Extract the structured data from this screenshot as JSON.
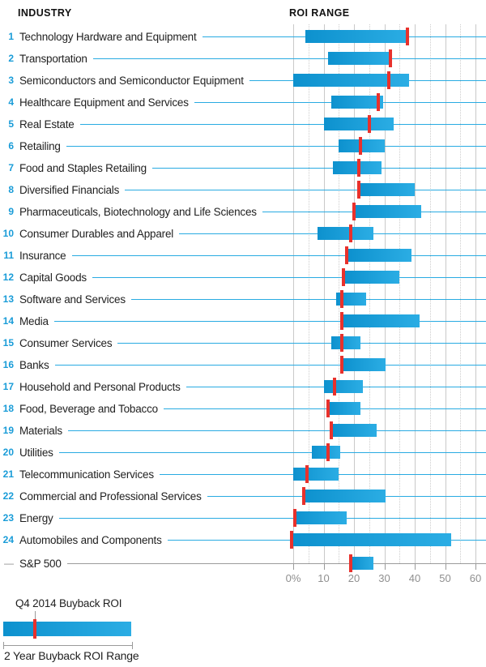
{
  "header": {
    "industry": "INDUSTRY",
    "roi_range": "ROI RANGE"
  },
  "legend": {
    "marker_label": "Q4 2014 Buyback ROI",
    "range_label": "2 Year Buyback ROI Range"
  },
  "chart_data": {
    "type": "bar",
    "subtype": "horizontal-range-bars-with-point-marker",
    "units": "percent ROI",
    "axis": {
      "min": 0,
      "max": 60,
      "major_step": 10,
      "minor_step": 5,
      "tick_labels": [
        "0%",
        "10",
        "20",
        "30",
        "40",
        "50",
        "60"
      ],
      "grid": true
    },
    "series_meta": {
      "bar": "2 Year Buyback ROI Range",
      "marker": "Q4 2014 Buyback ROI"
    },
    "rows": [
      {
        "num": "1",
        "label": "Technology Hardware and Equipment",
        "range_lo": 4,
        "range_hi": 38,
        "roi": 37.5
      },
      {
        "num": "2",
        "label": "Transportation",
        "range_lo": 11.5,
        "range_hi": 32,
        "roi": 32
      },
      {
        "num": "3",
        "label": "Semiconductors and Semiconductor Equipment",
        "range_lo": 0,
        "range_hi": 38,
        "roi": 31.5
      },
      {
        "num": "4",
        "label": "Healthcare Equipment and Services",
        "range_lo": 12.5,
        "range_hi": 29.5,
        "roi": 28
      },
      {
        "num": "5",
        "label": "Real Estate",
        "range_lo": 10,
        "range_hi": 33,
        "roi": 25
      },
      {
        "num": "6",
        "label": "Retailing",
        "range_lo": 15,
        "range_hi": 30,
        "roi": 22
      },
      {
        "num": "7",
        "label": "Food and Staples Retailing",
        "range_lo": 13,
        "range_hi": 29,
        "roi": 21.5
      },
      {
        "num": "8",
        "label": "Diversified Financials",
        "range_lo": 22,
        "range_hi": 40,
        "roi": 21.5
      },
      {
        "num": "9",
        "label": "Pharmaceuticals, Biotechnology and Life Sciences",
        "range_lo": 20,
        "range_hi": 42,
        "roi": 20
      },
      {
        "num": "10",
        "label": "Consumer Durables and Apparel",
        "range_lo": 8,
        "range_hi": 26.5,
        "roi": 19
      },
      {
        "num": "11",
        "label": "Insurance",
        "range_lo": 18,
        "range_hi": 39,
        "roi": 17.5
      },
      {
        "num": "12",
        "label": "Capital Goods",
        "range_lo": 17,
        "range_hi": 35,
        "roi": 16.5
      },
      {
        "num": "13",
        "label": "Software and Services",
        "range_lo": 14,
        "range_hi": 24,
        "roi": 16
      },
      {
        "num": "14",
        "label": "Media",
        "range_lo": 16,
        "range_hi": 41.5,
        "roi": 16
      },
      {
        "num": "15",
        "label": "Consumer Services",
        "range_lo": 12.5,
        "range_hi": 22,
        "roi": 16
      },
      {
        "num": "16",
        "label": "Banks",
        "range_lo": 16,
        "range_hi": 30.5,
        "roi": 16
      },
      {
        "num": "17",
        "label": "Household and Personal Products",
        "range_lo": 10,
        "range_hi": 23,
        "roi": 13.5
      },
      {
        "num": "18",
        "label": "Food, Beverage and Tobacco",
        "range_lo": 12,
        "range_hi": 22,
        "roi": 11.5
      },
      {
        "num": "19",
        "label": "Materials",
        "range_lo": 13,
        "range_hi": 27.5,
        "roi": 12.5
      },
      {
        "num": "20",
        "label": "Utilities",
        "range_lo": 6,
        "range_hi": 15.5,
        "roi": 11.5
      },
      {
        "num": "21",
        "label": "Telecommunication Services",
        "range_lo": 0,
        "range_hi": 15,
        "roi": 4.5
      },
      {
        "num": "22",
        "label": "Commercial and Professional Services",
        "range_lo": 3.5,
        "range_hi": 30.5,
        "roi": 3.5
      },
      {
        "num": "23",
        "label": "Energy",
        "range_lo": 0,
        "range_hi": 17.5,
        "roi": 0.5
      },
      {
        "num": "24",
        "label": "Automobiles and Components",
        "range_lo": -0.5,
        "range_hi": 52,
        "roi": -0.5
      },
      {
        "num": "—",
        "label": "S&P 500",
        "range_lo": 19.5,
        "range_hi": 26.5,
        "roi": 19,
        "sp500": true
      }
    ],
    "colors": {
      "bar_gradient_left": "#0d91ce",
      "bar_gradient_right": "#2bade4",
      "marker_red": "#e8312c",
      "leader_line": "#29abe2",
      "number_blue": "#199cd8",
      "grid_major": "#c9c9c9",
      "grid_minor": "#cdcdcd",
      "axis_gray": "#9a9a9a",
      "axis_text": "#8f8f8f",
      "label_text": "#1f1f1f"
    }
  }
}
